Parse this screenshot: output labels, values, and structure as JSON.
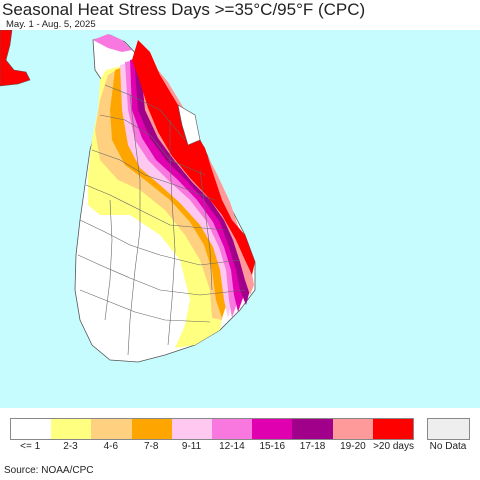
{
  "title": "Seasonal Heat Stress Days >=35°C/95°F (CPC)",
  "subtitle": "May. 1 - Aug. 5, 2025",
  "source": "Source: NOAA/CPC",
  "colors": {
    "ocean": "#c6fcfe",
    "land": "#ffffff",
    "boundary": "#555555"
  },
  "legend": {
    "bins": [
      {
        "label": "<= 1",
        "color": "#ffffff"
      },
      {
        "label": "2-3",
        "color": "#ffff80"
      },
      {
        "label": "4-6",
        "color": "#ffd080"
      },
      {
        "label": "7-8",
        "color": "#ffa500"
      },
      {
        "label": "9-11",
        "color": "#ffc8f0"
      },
      {
        "label": "12-14",
        "color": "#f878e0"
      },
      {
        "label": "15-16",
        "color": "#e000b0"
      },
      {
        "label": "17-18",
        "color": "#a0008a"
      },
      {
        "label": "19-20",
        "color": "#ff9a9a"
      },
      {
        "label": ">20 days",
        "color": "#ff0000"
      }
    ],
    "no_data": {
      "label": "No Data",
      "color": "#eeeeee"
    }
  }
}
